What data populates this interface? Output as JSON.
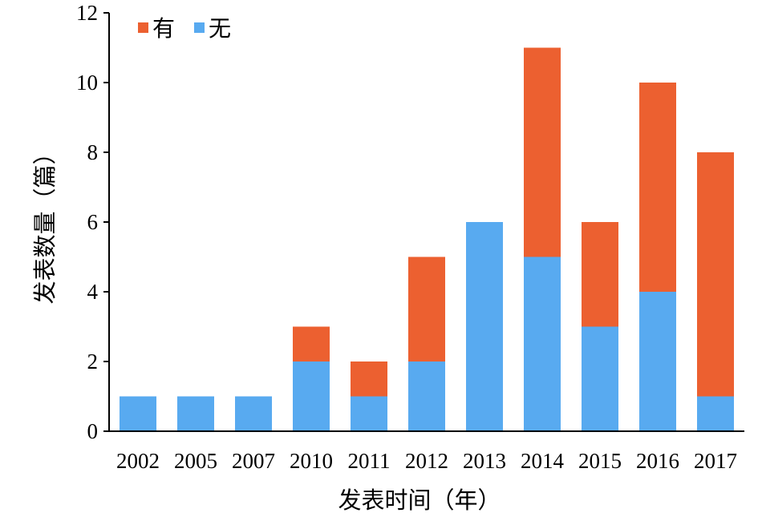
{
  "chart_data": {
    "type": "bar",
    "stacked": true,
    "categories": [
      "2002",
      "2005",
      "2007",
      "2010",
      "2011",
      "2012",
      "2013",
      "2014",
      "2015",
      "2016",
      "2017"
    ],
    "series": [
      {
        "name": "无",
        "color": "#58AAF0",
        "values": [
          1,
          1,
          1,
          2,
          1,
          2,
          6,
          5,
          3,
          4,
          1
        ]
      },
      {
        "name": "有",
        "color": "#EC6030",
        "values": [
          0,
          0,
          0,
          1,
          1,
          3,
          0,
          6,
          3,
          6,
          7
        ]
      }
    ],
    "legend_order": [
      "有",
      "无"
    ],
    "legend_position": "top-left",
    "xlabel": "发表时间（年）",
    "ylabel": "发表数量（篇）",
    "ylim": [
      0,
      12
    ],
    "yticks": [
      0,
      2,
      4,
      6,
      8,
      10,
      12
    ],
    "grid": false
  }
}
